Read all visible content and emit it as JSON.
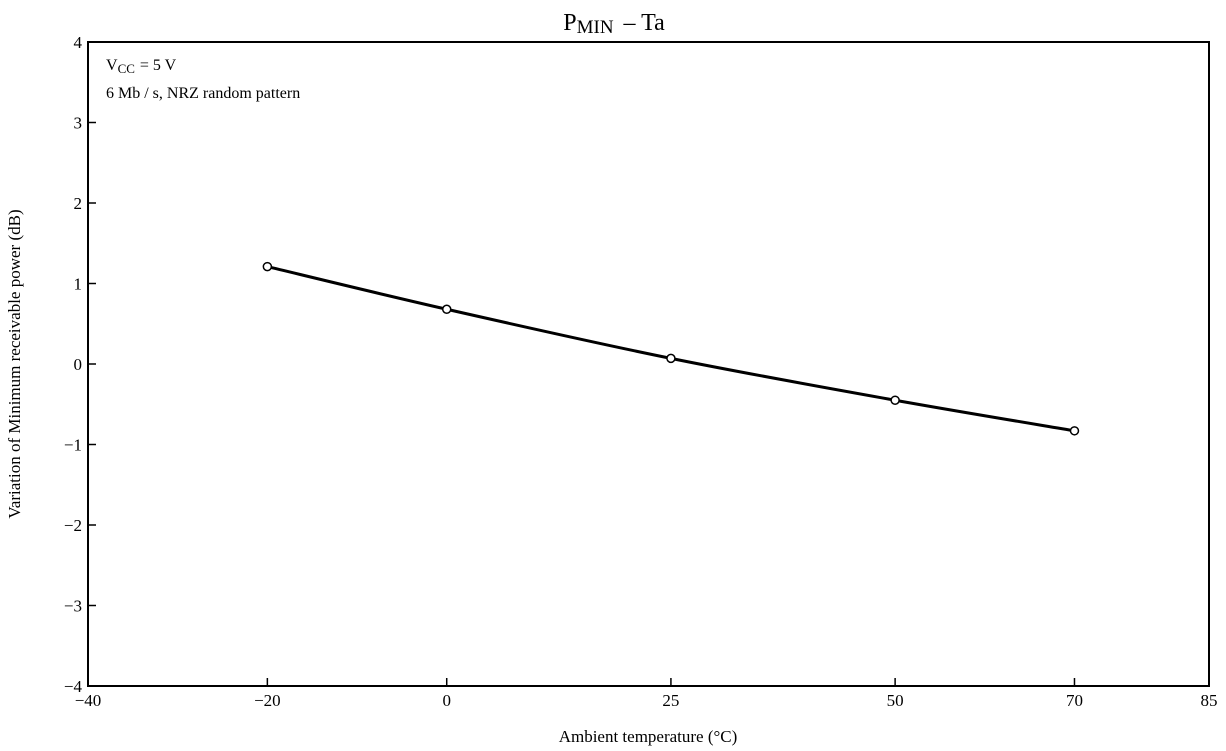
{
  "chart_data": {
    "type": "line",
    "title": {
      "main_prefix": "P",
      "main_sub": "MIN",
      "rest": "– Ta"
    },
    "xlabel": "Ambient temperature (°C)",
    "ylabel": "Variation of Minimum receivable power (dB)",
    "x_ticks": [
      -40,
      -20,
      0,
      25,
      50,
      70,
      85
    ],
    "x_tick_labels": [
      "−40",
      "−20",
      "0",
      "25",
      "50",
      "70",
      "85"
    ],
    "y_ticks": [
      -4,
      -3,
      -2,
      -1,
      0,
      1,
      2,
      3,
      4
    ],
    "y_tick_labels": [
      "−4",
      "−3",
      "−2",
      "−1",
      "0",
      "1",
      "2",
      "3",
      "4"
    ],
    "xlim": [
      -40,
      85
    ],
    "ylim": [
      -4,
      4
    ],
    "grid": false,
    "annotation": {
      "line1_prefix": "V",
      "line1_sub": "CC",
      "line1_rest": "= 5 V",
      "line2": "6 Mb / s, NRZ  random pattern"
    },
    "series": [
      {
        "x": [
          -20,
          0,
          25,
          50,
          70
        ],
        "y": [
          1.21,
          0.68,
          0.07,
          -0.45,
          -0.83
        ]
      }
    ],
    "colors": {
      "line": "#000000",
      "marker_fill": "#ffffff"
    }
  }
}
